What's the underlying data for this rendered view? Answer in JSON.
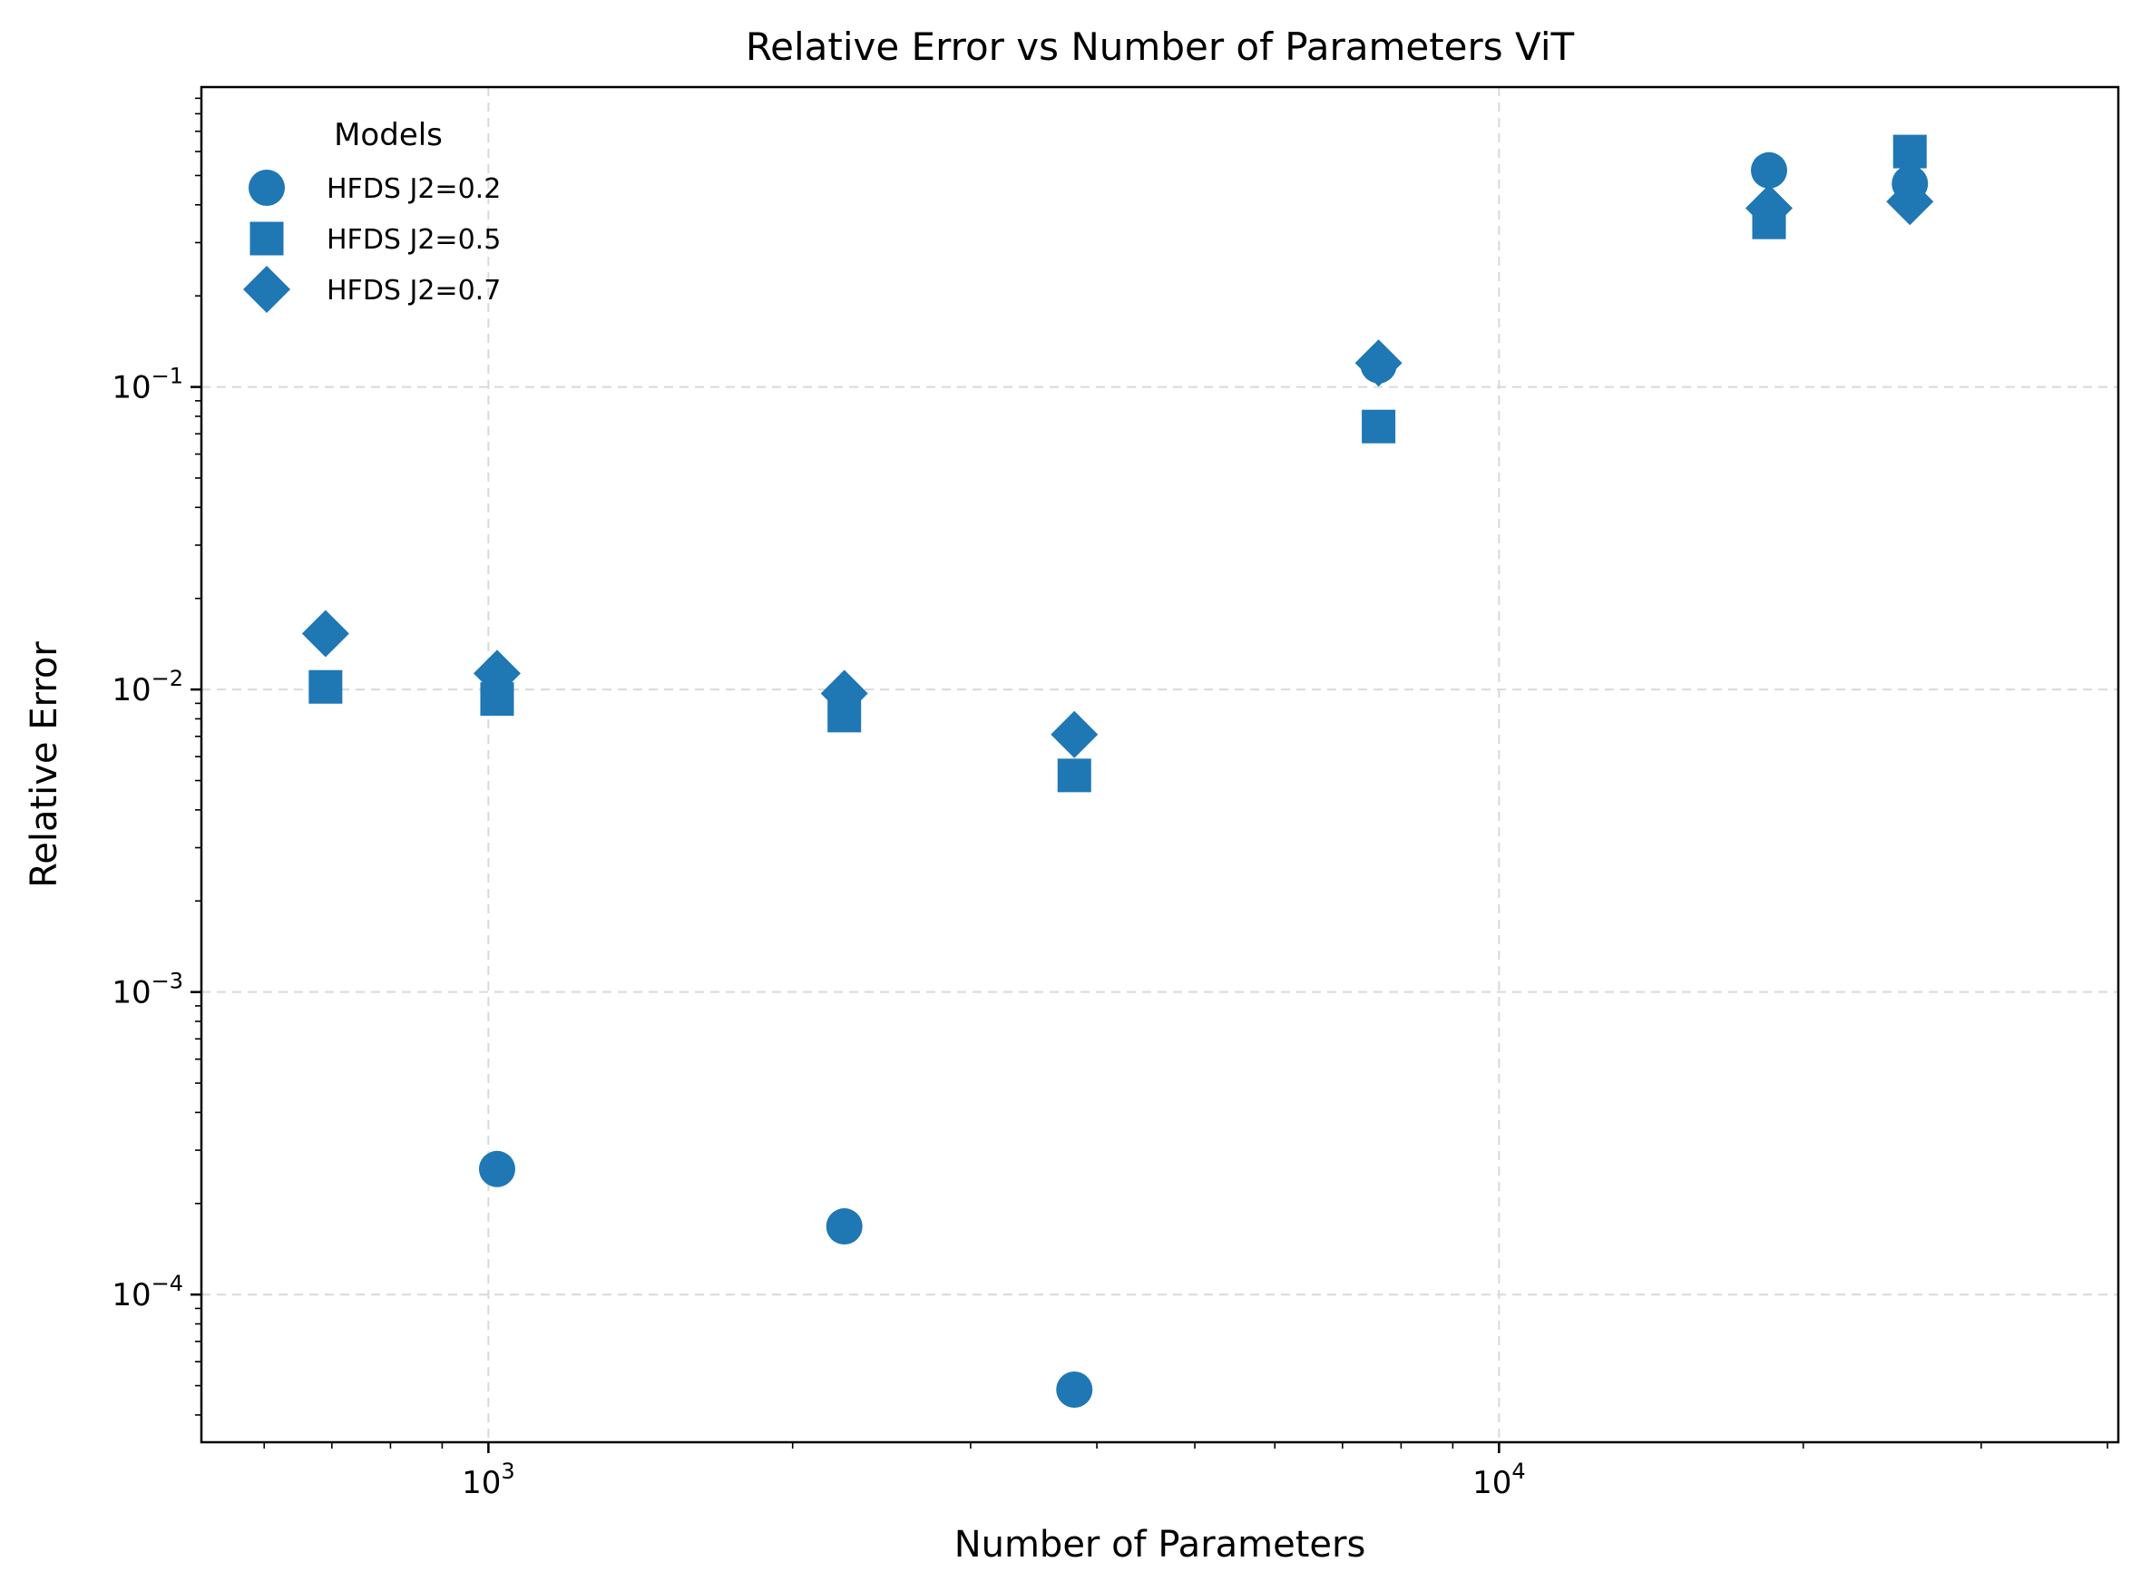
{
  "chart_data": {
    "type": "scatter",
    "title": "Relative Error vs Number of Parameters ViT",
    "xlabel": "Number of Parameters",
    "ylabel": "Relative Error",
    "xscale": "log",
    "yscale": "log",
    "xlim": [
      520,
      41000
    ],
    "ylim": [
      3.25e-05,
      0.98
    ],
    "grid": true,
    "legend_title": "Models",
    "legend_position": "top-left",
    "marker_color": "#1f77b4",
    "x_ticks": [
      {
        "value": 1000,
        "base": "10",
        "exp": "3"
      },
      {
        "value": 10000,
        "base": "10",
        "exp": "4"
      }
    ],
    "y_ticks": [
      {
        "value": 0.0001,
        "base": "10",
        "exp": "−4"
      },
      {
        "value": 0.001,
        "base": "10",
        "exp": "−3"
      },
      {
        "value": 0.01,
        "base": "10",
        "exp": "−2"
      },
      {
        "value": 0.1,
        "base": "10",
        "exp": "−1"
      }
    ],
    "series": [
      {
        "name": "HFDS J2=0.2",
        "marker": "circle",
        "points": [
          {
            "x": 1020,
            "y": 0.00026
          },
          {
            "x": 2250,
            "y": 0.000168
          },
          {
            "x": 3800,
            "y": 4.85e-05
          },
          {
            "x": 7600,
            "y": 0.118
          },
          {
            "x": 18500,
            "y": 0.52
          },
          {
            "x": 25500,
            "y": 0.47
          }
        ]
      },
      {
        "name": "HFDS J2=0.5",
        "marker": "square",
        "points": [
          {
            "x": 690,
            "y": 0.0102
          },
          {
            "x": 1020,
            "y": 0.0093
          },
          {
            "x": 2250,
            "y": 0.0082
          },
          {
            "x": 3800,
            "y": 0.0052
          },
          {
            "x": 7600,
            "y": 0.074
          },
          {
            "x": 18500,
            "y": 0.35
          },
          {
            "x": 25500,
            "y": 0.6
          }
        ]
      },
      {
        "name": "HFDS J2=0.7",
        "marker": "diamond",
        "points": [
          {
            "x": 690,
            "y": 0.0153
          },
          {
            "x": 1020,
            "y": 0.0113
          },
          {
            "x": 2250,
            "y": 0.0097
          },
          {
            "x": 3800,
            "y": 0.0071
          },
          {
            "x": 7600,
            "y": 0.12
          },
          {
            "x": 18500,
            "y": 0.39
          },
          {
            "x": 25500,
            "y": 0.41
          }
        ]
      }
    ]
  }
}
